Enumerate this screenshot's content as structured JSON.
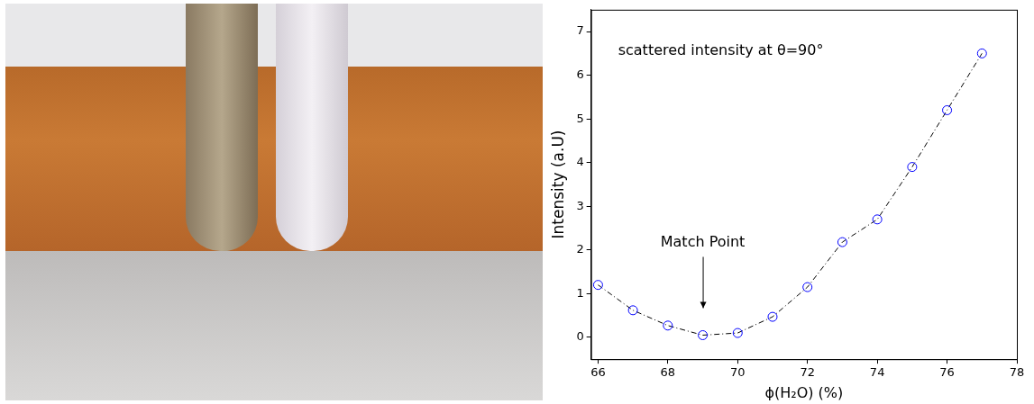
{
  "chart_data": {
    "type": "scatter",
    "title": "scattered intensity at θ=90°",
    "x_label": "ϕ(H₂O) (%)",
    "y_label": "Intensity (a.U)",
    "annotations": [
      "Match Point"
    ],
    "x": [
      66,
      67,
      68,
      69,
      70,
      71,
      72,
      73,
      74,
      75,
      76,
      77
    ],
    "values": [
      1.2,
      0.62,
      0.27,
      0.05,
      0.1,
      0.47,
      1.15,
      2.18,
      2.7,
      3.9,
      5.2,
      6.5
    ],
    "color": "#0000ff",
    "marker": "circle",
    "line_style": "dashdot",
    "xlim": [
      65.8,
      78
    ],
    "xticks": [
      66,
      68,
      70,
      72,
      74,
      76,
      78
    ],
    "ylim": [
      -0.5,
      7.5
    ],
    "yticks": [
      0,
      1,
      2,
      3,
      4,
      5,
      6,
      7
    ],
    "grid": false
  }
}
